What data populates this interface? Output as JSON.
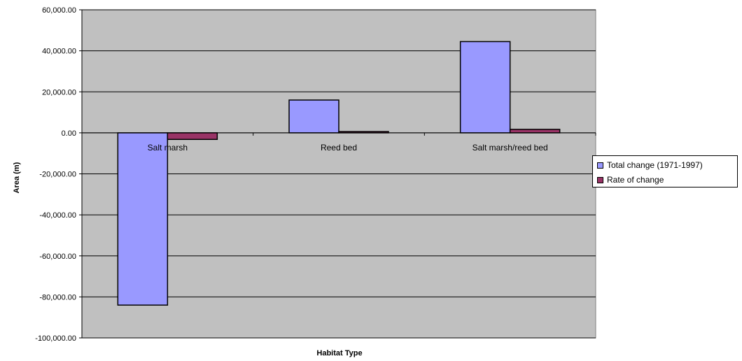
{
  "chart_data": {
    "type": "bar",
    "categories": [
      "Salt marsh",
      "Reed bed",
      "Salt marsh/reed bed"
    ],
    "series": [
      {
        "name": "Total change (1971-1997)",
        "values": [
          -84000,
          16000,
          44500
        ]
      },
      {
        "name": "Rate of change",
        "values": [
          -3200,
          620,
          1700
        ]
      }
    ],
    "xlabel": "Habitat Type",
    "ylabel": "Area (m)",
    "ylim": [
      -100000,
      60000
    ],
    "yticks": [
      "60,000.00",
      "40,000.00",
      "20,000.00",
      "0.00",
      "-20,000.00",
      "-40,000.00",
      "-60,000.00",
      "-80,000.00",
      "-100,000.00"
    ],
    "ytick_values": [
      60000,
      40000,
      20000,
      0,
      -20000,
      -40000,
      -60000,
      -80000,
      -100000
    ],
    "grid": true,
    "legend_position": "right",
    "colors": {
      "series0": "#9999ff",
      "series1": "#993366",
      "plot_bg": "#c0c0c0"
    }
  }
}
